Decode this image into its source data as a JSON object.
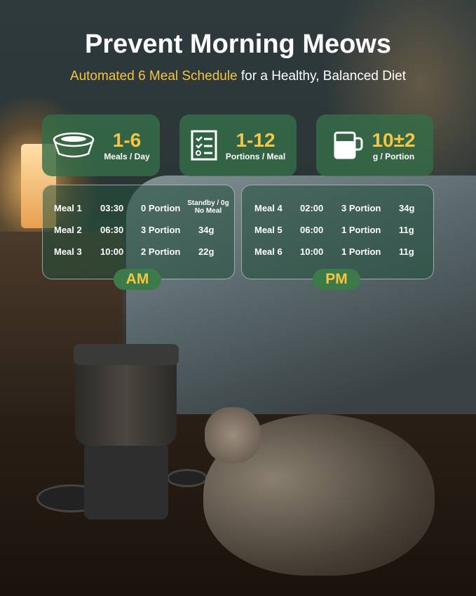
{
  "header": {
    "title": "Prevent Morning Meows",
    "subtitle_highlight": "Automated 6 Meal Schedule",
    "subtitle_rest": " for a Healthy, Balanced Diet"
  },
  "stats": [
    {
      "icon": "bowl-icon",
      "value": "1-6",
      "label": "Meals / Day"
    },
    {
      "icon": "checklist-icon",
      "value": "1-12",
      "label": "Portions / Meal"
    },
    {
      "icon": "cup-icon",
      "value": "10±2",
      "label": "g / Portion"
    }
  ],
  "am": {
    "label": "AM",
    "meals": [
      {
        "meal": "Meal 1",
        "time": "03:30",
        "portion": "0 Portion",
        "amount": "Standby / 0g No Meal"
      },
      {
        "meal": "Meal 2",
        "time": "06:30",
        "portion": "3 Portion",
        "amount": "34g"
      },
      {
        "meal": "Meal 3",
        "time": "10:00",
        "portion": "2 Portion",
        "amount": "22g"
      }
    ]
  },
  "pm": {
    "label": "PM",
    "meals": [
      {
        "meal": "Meal 4",
        "time": "02:00",
        "portion": "3 Portion",
        "amount": "34g"
      },
      {
        "meal": "Meal 5",
        "time": "06:00",
        "portion": "1 Portion",
        "amount": "11g"
      },
      {
        "meal": "Meal 6",
        "time": "10:00",
        "portion": "1 Portion",
        "amount": "11g"
      }
    ]
  },
  "colors": {
    "accent": "#f5c543",
    "card": "#346e48"
  }
}
